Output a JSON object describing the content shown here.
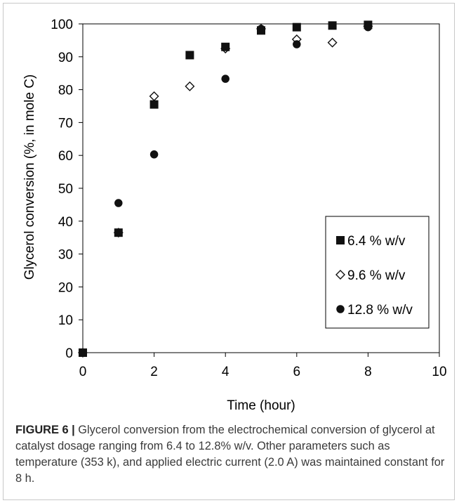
{
  "figure": {
    "caption_label": "FIGURE 6 |",
    "caption_text": " Glycerol conversion from the electrochemical conversion of glycerol at catalyst dosage ranging from 6.4 to 12.8% w/v. Other parameters such as temperature (353 k), and applied electric current (2.0 A) was maintained constant for 8 h."
  },
  "chart_data": {
    "type": "scatter",
    "xlabel": "Time (hour)",
    "ylabel": "Glycerol conversion (%, in mole C)",
    "xlim": [
      0,
      10
    ],
    "ylim": [
      0,
      100
    ],
    "xticks": [
      0,
      2,
      4,
      6,
      8,
      10
    ],
    "yticks": [
      0,
      10,
      20,
      30,
      40,
      50,
      60,
      70,
      80,
      90,
      100
    ],
    "grid": false,
    "legend_position": "bottom-right",
    "series": [
      {
        "name": "6.4 % w/v",
        "marker": "filled-square",
        "color": "#111111",
        "x": [
          0,
          1,
          2,
          3,
          4,
          5,
          6,
          7,
          8
        ],
        "y": [
          0,
          36.5,
          75.5,
          90.5,
          93,
          98,
          99,
          99.5,
          99.7
        ]
      },
      {
        "name": "9.6 % w/v",
        "marker": "open-diamond",
        "color": "#111111",
        "x": [
          0,
          1,
          2,
          3,
          4,
          5,
          6,
          7,
          8
        ],
        "y": [
          0,
          36.5,
          78,
          81,
          92.5,
          98.5,
          95.3,
          94.3,
          99.3
        ]
      },
      {
        "name": "12.8 % w/v",
        "marker": "filled-circle",
        "color": "#111111",
        "x": [
          0,
          1,
          2,
          3,
          4,
          5,
          6,
          8
        ],
        "y": [
          0,
          45.5,
          60.3,
          90.5,
          83.3,
          98.5,
          93.8,
          99
        ]
      }
    ]
  }
}
